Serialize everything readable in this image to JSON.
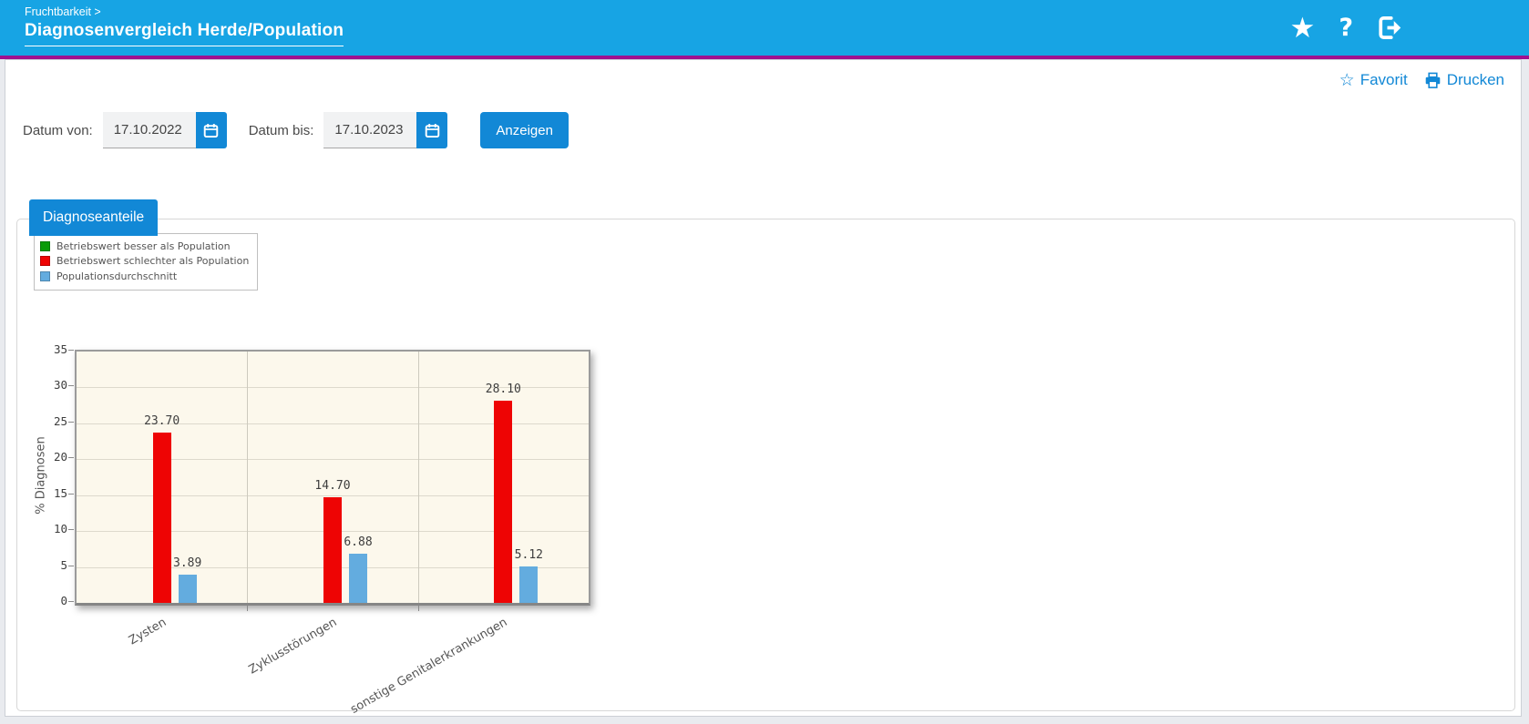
{
  "header": {
    "breadcrumb": "Fruchtbarkeit >",
    "title": "Diagnosenvergleich Herde/Population",
    "icons": [
      {
        "name": "favorite-star-icon"
      },
      {
        "name": "help-icon",
        "glyph": "?"
      },
      {
        "name": "logout-icon"
      }
    ]
  },
  "quick_links": {
    "favorit": "Favorit",
    "drucken": "Drucken"
  },
  "filters": {
    "date_from_label": "Datum von:",
    "date_from_value": "17.10.2022",
    "date_to_label": "Datum bis:",
    "date_to_value": "17.10.2023",
    "submit_label": "Anzeigen"
  },
  "tab": {
    "label": "Diagnoseanteile"
  },
  "legend": [
    {
      "label": "Betriebswert besser als Population",
      "color": "#0a9b08"
    },
    {
      "label": "Betriebswert schlechter als Population",
      "color": "#ee0404"
    },
    {
      "label": "Populationsdurchschnitt",
      "color": "#63acdf"
    }
  ],
  "chart_data": {
    "type": "bar",
    "title": "",
    "xlabel": "",
    "ylabel": "% Diagnosen",
    "ylim": [
      0,
      35
    ],
    "ytick_step": 5,
    "grid": true,
    "legend_position": "top-left",
    "plot_bg": "#fcf8ec",
    "categories": [
      "Zysten",
      "Zyklusstörungen",
      "sonstige Genitalerkrankungen"
    ],
    "series": [
      {
        "name": "Betriebswert besser als Population",
        "color": "#0a9b08",
        "values": [
          null,
          null,
          null
        ]
      },
      {
        "name": "Betriebswert schlechter als Population",
        "color": "#ee0404",
        "values": [
          23.7,
          14.7,
          28.1
        ]
      },
      {
        "name": "Populationsdurchschnitt",
        "color": "#63acdf",
        "values": [
          3.89,
          6.88,
          5.12
        ]
      }
    ],
    "value_labels": true,
    "value_label_decimals": 2
  },
  "colors": {
    "header_bg": "#17a4e4",
    "accent": "#1288d6",
    "magenta_divider": "#a0108f",
    "page_bg": "#e9ebef"
  }
}
